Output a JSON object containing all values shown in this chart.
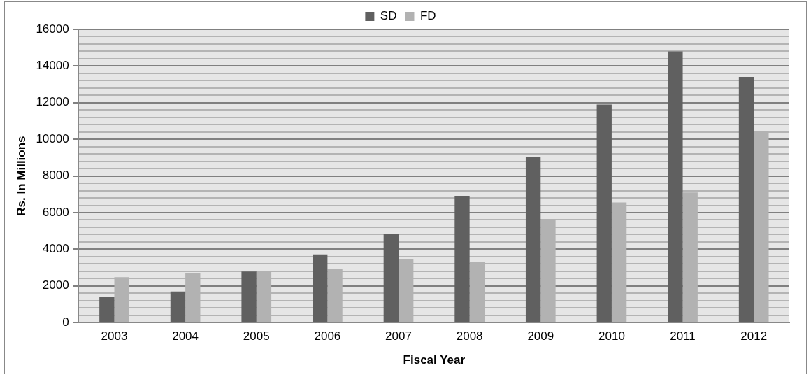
{
  "chart_data": {
    "type": "bar",
    "xlabel": "Fiscal Year",
    "ylabel": "Rs. In Millions",
    "categories": [
      "2003",
      "2004",
      "2005",
      "2006",
      "2007",
      "2008",
      "2009",
      "2010",
      "2011",
      "2012"
    ],
    "series": [
      {
        "name": "SD",
        "color": "#606060",
        "values": [
          1400,
          1700,
          2780,
          3720,
          4820,
          6920,
          9050,
          11900,
          14800,
          13400
        ]
      },
      {
        "name": "FD",
        "color": "#b2b2b2",
        "values": [
          2480,
          2700,
          2820,
          2940,
          3440,
          3300,
          5650,
          6550,
          7100,
          10450
        ]
      }
    ],
    "ylim": [
      0,
      16000
    ],
    "yticks": [
      0,
      {
        "value": 400,
        "label": null
      },
      {
        "value": 800,
        "label": null
      },
      {
        "value": 1200,
        "label": null
      },
      {
        "value": 1600,
        "label": null
      },
      2000,
      {
        "value": 2400,
        "label": null
      },
      {
        "value": 2800,
        "label": null
      },
      {
        "value": 3200,
        "label": null
      },
      {
        "value": 3600,
        "label": null
      },
      4000,
      {
        "value": 4400,
        "label": null
      },
      {
        "value": 4800,
        "label": null
      },
      {
        "value": 5200,
        "label": null
      },
      {
        "value": 5600,
        "label": null
      },
      6000,
      {
        "value": 6400,
        "label": null
      },
      {
        "value": 6800,
        "label": null
      },
      {
        "value": 7200,
        "label": null
      },
      {
        "value": 7600,
        "label": null
      },
      8000,
      {
        "value": 8400,
        "label": null
      },
      {
        "value": 8800,
        "label": null
      },
      {
        "value": 9200,
        "label": null
      },
      {
        "value": 9600,
        "label": null
      },
      10000,
      {
        "value": 10400,
        "label": null
      },
      {
        "value": 10800,
        "label": null
      },
      {
        "value": 11200,
        "label": null
      },
      {
        "value": 11600,
        "label": null
      },
      12000,
      {
        "value": 12400,
        "label": null
      },
      {
        "value": 12800,
        "label": null
      },
      {
        "value": 13200,
        "label": null
      },
      {
        "value": 13600,
        "label": null
      },
      14000,
      {
        "value": 14400,
        "label": null
      },
      {
        "value": 14800,
        "label": null
      },
      {
        "value": 15200,
        "label": null
      },
      {
        "value": 15600,
        "label": null
      },
      16000
    ],
    "grid": "y",
    "legend": "top"
  }
}
